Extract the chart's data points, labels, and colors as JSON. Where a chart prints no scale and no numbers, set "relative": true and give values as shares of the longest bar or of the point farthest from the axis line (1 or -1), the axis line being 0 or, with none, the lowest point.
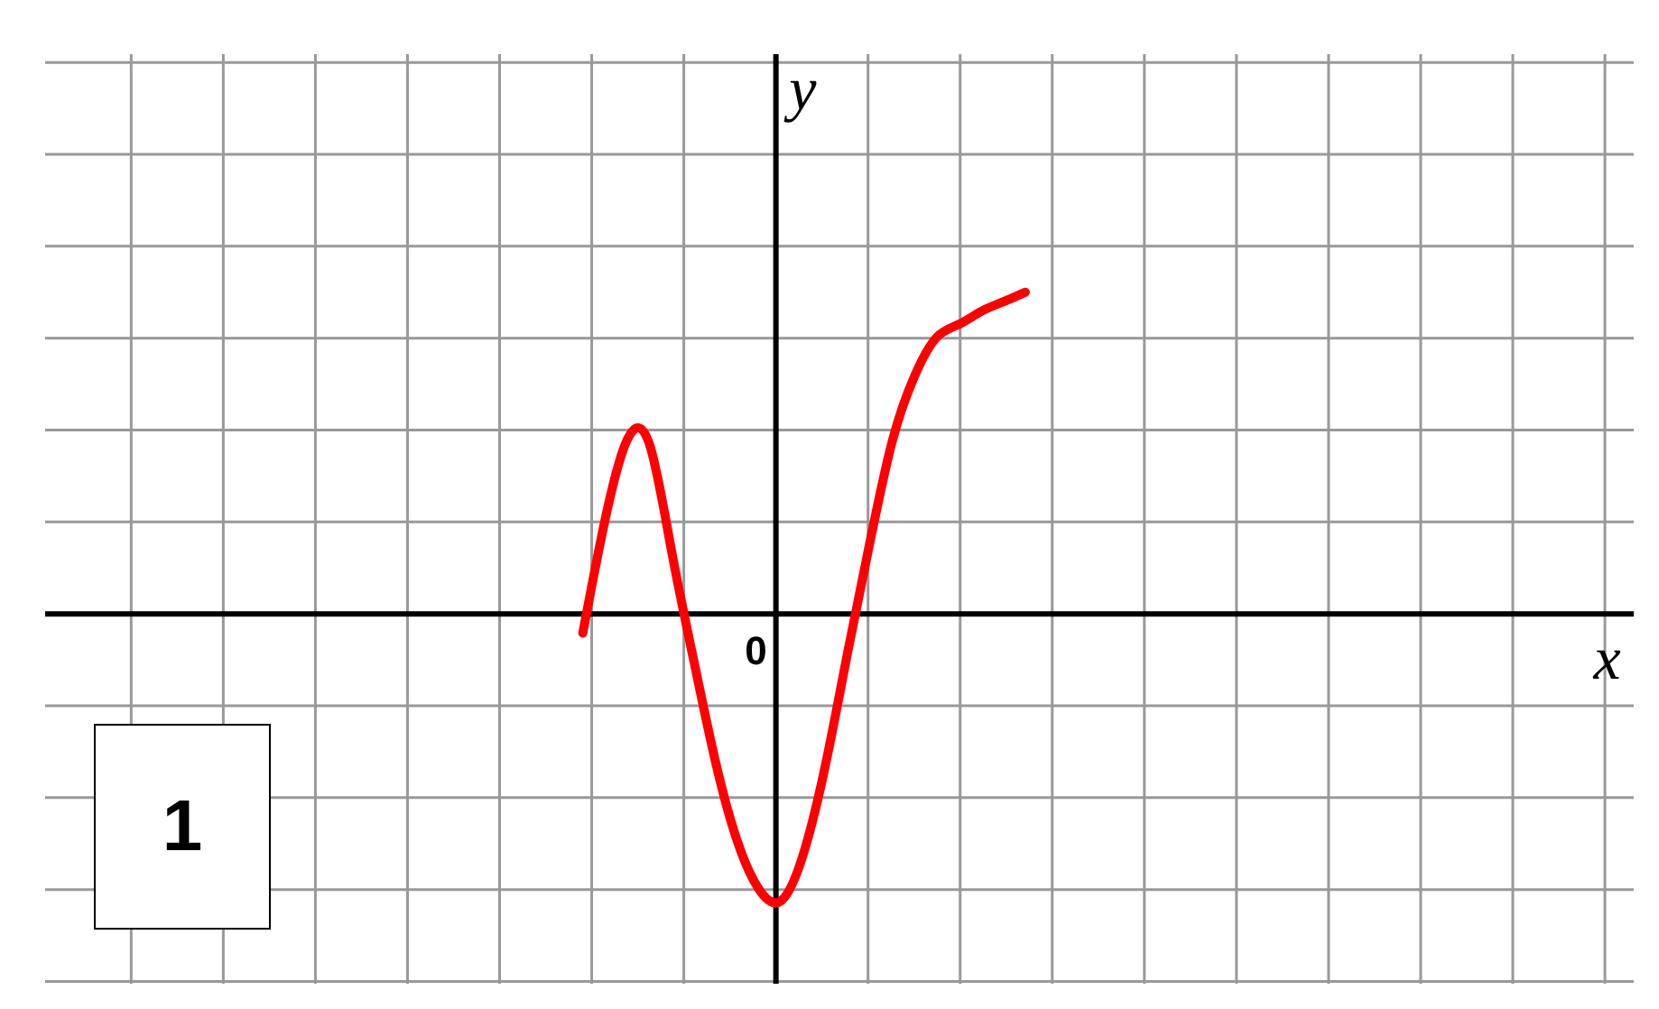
{
  "chart_data": {
    "type": "line",
    "relative": true,
    "grid": true,
    "categories": [
      null,
      null,
      null,
      null,
      null,
      null,
      null,
      null,
      null,
      null,
      null,
      null,
      null,
      null,
      null,
      null,
      null,
      null,
      null,
      null,
      null
    ],
    "series": [
      {
        "color": "#ff0000",
        "values": [
          -0.06,
          0.29,
          0.54,
          0.53,
          0.2,
          -0.14,
          -0.46,
          -0.71,
          -0.86,
          -0.89,
          -0.74,
          -0.46,
          -0.11,
          0.23,
          0.54,
          0.74,
          0.86,
          0.9,
          0.94,
          0.97,
          1
        ]
      }
    ],
    "annotations": [
      "0",
      "1",
      "x",
      "y"
    ]
  }
}
